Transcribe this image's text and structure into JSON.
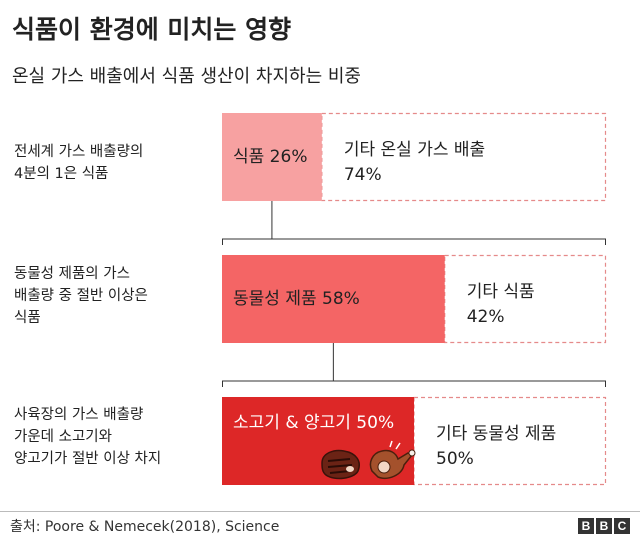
{
  "title": "식품이 환경에 미치는 영향",
  "subtitle": "온실 가스 배출에서 식품 생산이 차지하는 비중",
  "rows": [
    {
      "label_lines": [
        "전세계 가스 배출량의",
        " 4분의 1은 식품"
      ]
    },
    {
      "label_lines": [
        "동물성 제품의 가스",
        "배출량 중 절반 이상은",
        "식품"
      ]
    },
    {
      "label_lines": [
        "사육장의 가스 배출량",
        "가운데 소고기와",
        "양고기가 절반 이상 차지"
      ]
    }
  ],
  "chart_data": {
    "type": "bar",
    "title": "식품이 환경에 미치는 영향",
    "subtitle": "온실 가스 배출에서 식품 생산이 차지하는 비중",
    "unit": "%",
    "bars": [
      {
        "part_label": "식품",
        "part_value": 26,
        "rest_label": "기타 온실 가스 배출",
        "rest_value": 74,
        "color": "#f7a1a1"
      },
      {
        "part_label": "동물성 제품",
        "part_value": 58,
        "rest_label": "기타 식품",
        "rest_value": 42,
        "color": "#f46565"
      },
      {
        "part_label": "소고기 & 양고기",
        "part_value": 50,
        "rest_label": "기타 동물성 제품",
        "rest_value": 50,
        "color": "#dd2727"
      }
    ],
    "dashed_border_color": "#e58a8a",
    "connector_color": "#333333"
  },
  "icons": [
    "steak-icon",
    "lamb-leg-icon"
  ],
  "footer": {
    "source": "출처: Poore & Nemecek(2018), Science",
    "brand_letters": [
      "B",
      "B",
      "C"
    ]
  }
}
